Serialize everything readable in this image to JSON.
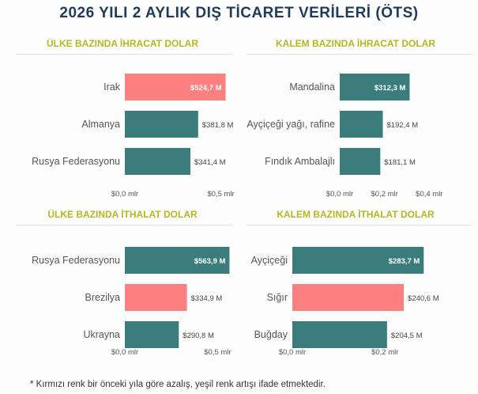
{
  "title": "2026 YILI 2 AYLIK DIŞ TİCARET VERİLERİ (ÖTS)",
  "footnote": "* Kırmızı renk bir önceki yıla göre azalış, yeşil renk artışı ifade etmektedir.",
  "colors": {
    "increase": "#3b7d7d",
    "decrease": "#fd8080",
    "title": "#1f3b5c",
    "panel_title": "#b5b81c"
  },
  "chart_data": [
    {
      "type": "bar",
      "orientation": "horizontal",
      "title": "ÜLKE BAZINDA İHRACAT DOLAR",
      "categories": [
        "Irak",
        "Almanya",
        "Rusya Federasyonu"
      ],
      "values": [
        524.7,
        381.8,
        341.4
      ],
      "value_labels": [
        "$524,7 M",
        "$381,8 M",
        "$341,4 M"
      ],
      "status": [
        "decrease",
        "increase",
        "increase"
      ],
      "xlim": [
        0,
        650
      ],
      "ticks": [
        {
          "value": 0,
          "label": "$0,0 mlr"
        },
        {
          "value": 500,
          "label": "$0,5 mlr"
        }
      ]
    },
    {
      "type": "bar",
      "orientation": "horizontal",
      "title": "KALEM BAZINDA İHRACAT DOLAR",
      "categories": [
        "Mandalina",
        "Ayçiçeği yağı, rafine",
        "Fındık Ambalajlı"
      ],
      "values": [
        312.3,
        192.4,
        181.1
      ],
      "value_labels": [
        "$312,3 M",
        "$192,4 M",
        "$181,1 M"
      ],
      "status": [
        "increase",
        "increase",
        "increase"
      ],
      "xlim": [
        0,
        420
      ],
      "ticks": [
        {
          "value": 0,
          "label": "$0,0 mlr"
        },
        {
          "value": 200,
          "label": "$0,2 mlr"
        },
        {
          "value": 400,
          "label": "$0,4 mlr"
        }
      ]
    },
    {
      "type": "bar",
      "orientation": "horizontal",
      "title": "ÜLKE BAZINDA İTHALAT DOLAR",
      "categories": [
        "Rusya Federasyonu",
        "Brezilya",
        "Ukrayna"
      ],
      "values": [
        563.9,
        334.9,
        290.8
      ],
      "value_labels": [
        "$563,9 M",
        "$334,9 M",
        "$290,8 M"
      ],
      "status": [
        "increase",
        "decrease",
        "increase"
      ],
      "xlim": [
        0,
        660
      ],
      "ticks": [
        {
          "value": 0,
          "label": "$0,0 mlr"
        },
        {
          "value": 500,
          "label": "$0,5 mlr"
        }
      ]
    },
    {
      "type": "bar",
      "orientation": "horizontal",
      "title": "KALEM BAZINDA İTHALAT DOLAR",
      "categories": [
        "Ayçiçeği",
        "Sığır",
        "Buğday"
      ],
      "values": [
        283.7,
        240.6,
        204.5
      ],
      "value_labels": [
        "$283,7 M",
        "$240,6 M",
        "$204,5 M"
      ],
      "status": [
        "increase",
        "decrease",
        "increase"
      ],
      "xlim": [
        0,
        290
      ],
      "ticks": [
        {
          "value": 0,
          "label": "$0,0 mlr"
        },
        {
          "value": 200,
          "label": "$0,2 mlr"
        }
      ]
    }
  ]
}
